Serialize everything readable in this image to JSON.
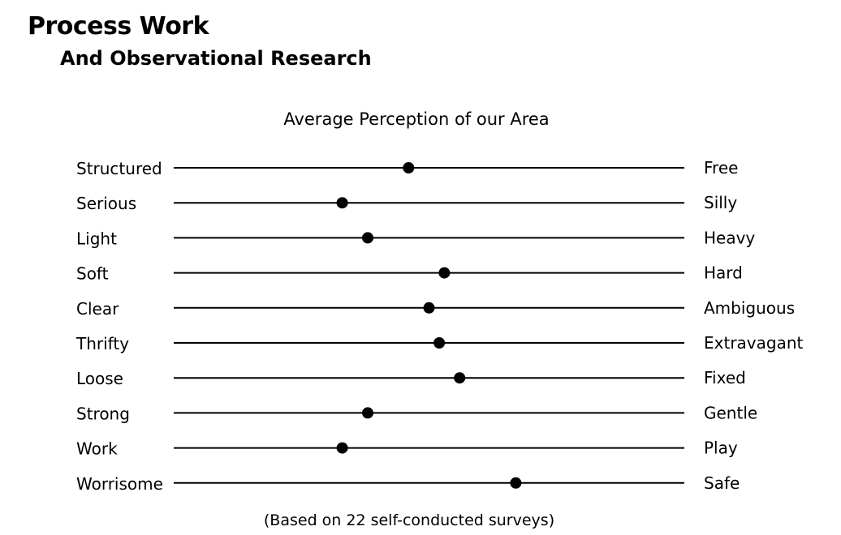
{
  "header": {
    "title": "Process Work",
    "subtitle": "And Observational Research"
  },
  "chart_data": {
    "type": "scatter",
    "title": "Average Perception of our Area",
    "footnote": "(Based on 22 self-conducted surveys)",
    "xlim": [
      0,
      1
    ],
    "grid": false,
    "rows": [
      {
        "left": "Structured",
        "right": "Free",
        "value": 0.46
      },
      {
        "left": "Serious",
        "right": "Silly",
        "value": 0.33
      },
      {
        "left": "Light",
        "right": "Heavy",
        "value": 0.38
      },
      {
        "left": "Soft",
        "right": "Hard",
        "value": 0.53
      },
      {
        "left": "Clear",
        "right": "Ambiguous",
        "value": 0.5
      },
      {
        "left": "Thrifty",
        "right": "Extravagant",
        "value": 0.52
      },
      {
        "left": "Loose",
        "right": "Fixed",
        "value": 0.56
      },
      {
        "left": "Strong",
        "right": "Gentle",
        "value": 0.38
      },
      {
        "left": "Work",
        "right": "Play",
        "value": 0.33
      },
      {
        "left": "Worrisome",
        "right": "Safe",
        "value": 0.67
      }
    ],
    "colors": {
      "line": "#000000",
      "dot": "#000000"
    }
  }
}
